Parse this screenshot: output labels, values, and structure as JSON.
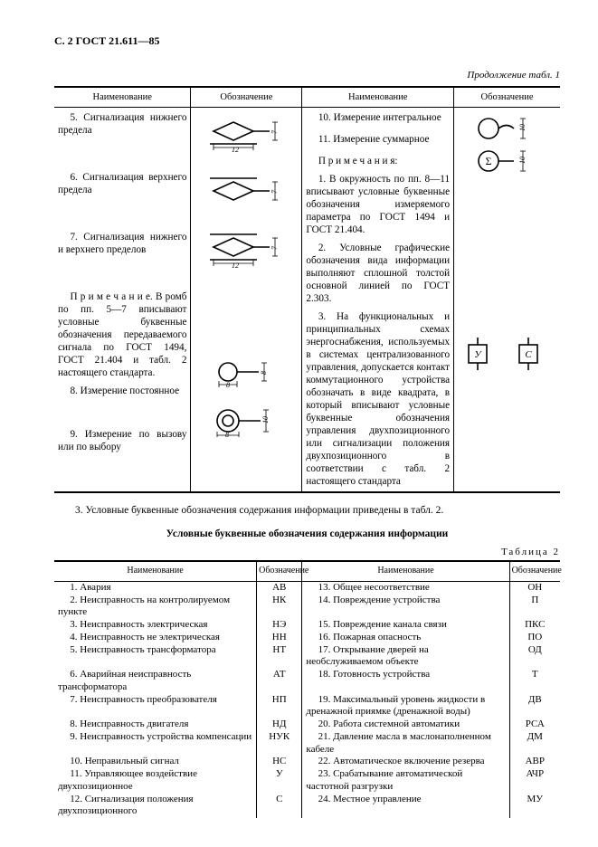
{
  "header": "С. 2 ГОСТ 21.611—85",
  "continuation": "Продолжение табл. 1",
  "t1_headers": [
    "Наименование",
    "Обозначение",
    "Наименование",
    "Обозначение"
  ],
  "t1": {
    "l5": "5. Сигнализация нижнего предела",
    "l6": "6. Сигнализация верхнего предела",
    "l7": "7. Сигнализация нижнего и верхнего пределов",
    "lnote": "П р и м е ч а н и е. В ромб по пп. 5—7 вписывают условные буквенные обозначения передаваемого сигнала по ГОСТ 1494, ГОСТ 21.404 и табл. 2 настоящего стандарта.",
    "l8": "8. Измерение постоянное",
    "l9": "9. Измерение по вызову или по выбору",
    "r10": "10. Измерение интегральное",
    "r11": "11. Измерение суммарное",
    "rnhead": "П р и м е ч а н и я:",
    "rn1": "1. В окружность по пп. 8—11 вписывают условные буквенные обозначения измеряемого параметра по ГОСТ 1494 и ГОСТ 21.404.",
    "rn2": "2. Условные графические обозначения вида информации выполняют сплошной толстой основной линией по ГОСТ 2.303.",
    "rn3": "3. На функциональных и принципиальных схемах энергоснабжения, используемых в системах централизованного управления, допускается контакт коммутационного устройства обозначать в виде квадрата, в который вписывают условные буквенные обозначения управления двухпозиционного или сигнализации положения двухпозиционного в соответствии с табл. 2 настоящего стандарта"
  },
  "dims": {
    "w12": "12",
    "h7": "7",
    "d8": "8",
    "d10": "10"
  },
  "sec3": "3. Условные буквенные обозначения содержания информации приведены в табл. 2.",
  "t2_title": "Условные буквенные обозначения содержания информации",
  "t2_label": "Таблица 2",
  "t2_headers": [
    "Наименование",
    "Обозначение",
    "Наименование",
    "Обозначение"
  ],
  "t2_left": [
    {
      "n": "1. Авария",
      "c": "АВ"
    },
    {
      "n": "2. Неисправность на контролируемом пункте",
      "c": "НК"
    },
    {
      "n": "3. Неисправность электрическая",
      "c": "НЭ"
    },
    {
      "n": "4. Неисправность не электрическая",
      "c": "НН"
    },
    {
      "n": "5. Неисправность трансформатора",
      "c": "НТ"
    },
    {
      "n": "6. Аварийная неисправность трансформатора",
      "c": "АТ"
    },
    {
      "n": "7. Неисправность преобразователя",
      "c": "НП"
    },
    {
      "n": "8. Неисправность двигателя",
      "c": "НД"
    },
    {
      "n": "9. Неисправность устройства компенсации",
      "c": "НУК"
    },
    {
      "n": "10. Неправильный сигнал",
      "c": "НС"
    },
    {
      "n": "11. Управляющее воздействие двухпозиционное",
      "c": "У"
    },
    {
      "n": "12. Сигнализация положения двухпозиционного",
      "c": "С"
    }
  ],
  "t2_right": [
    {
      "n": "13. Общее несоответствие",
      "c": "ОН"
    },
    {
      "n": "14. Повреждение устройства",
      "c": "П"
    },
    {
      "n": "15. Повреждение канала связи",
      "c": "ПКС"
    },
    {
      "n": "16. Пожарная опасность",
      "c": "ПО"
    },
    {
      "n": "17. Открывание дверей на необслуживаемом объекте",
      "c": "ОД"
    },
    {
      "n": "18. Готовность устройства",
      "c": "Т"
    },
    {
      "n": "19. Максимальный уровень жидкости в дренажной приямке (дренажной воды)",
      "c": "ДВ"
    },
    {
      "n": "20. Работа системной автоматики",
      "c": "РСА"
    },
    {
      "n": "21. Давление масла в маслонаполненном кабеле",
      "c": "ДМ"
    },
    {
      "n": "22. Автоматическое включение резерва",
      "c": "АВР"
    },
    {
      "n": "23. Срабатывание автоматической частотной разгрузки",
      "c": "АЧР"
    },
    {
      "n": "24. Местное управление",
      "c": "МУ"
    }
  ],
  "sym_labels": {
    "y": "У",
    "c": "С"
  }
}
